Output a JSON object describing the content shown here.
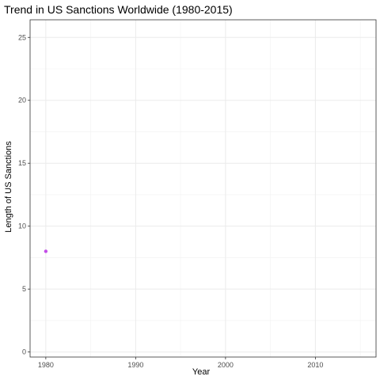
{
  "chart_data": {
    "type": "scatter",
    "title": "Trend in US Sanctions Worldwide (1980-2015)",
    "xlabel": "Year",
    "ylabel": "Length of US Sanctions",
    "xlim": [
      1978.25,
      1986.75
    ],
    "ylim": [
      -0.4,
      26.4
    ],
    "x_ticks": [
      1980,
      1990,
      2000,
      2010
    ],
    "y_ticks": [
      0,
      5,
      10,
      15,
      20,
      25
    ],
    "x_tick_labels": [
      "1980",
      "1990",
      "2000",
      "2010"
    ],
    "y_tick_labels": [
      "0",
      "5",
      "10",
      "15",
      "20",
      "25"
    ],
    "grid": true,
    "series": [
      {
        "color": "#c34ee8",
        "points": [
          {
            "x": 1980,
            "y": 8
          }
        ]
      }
    ]
  }
}
